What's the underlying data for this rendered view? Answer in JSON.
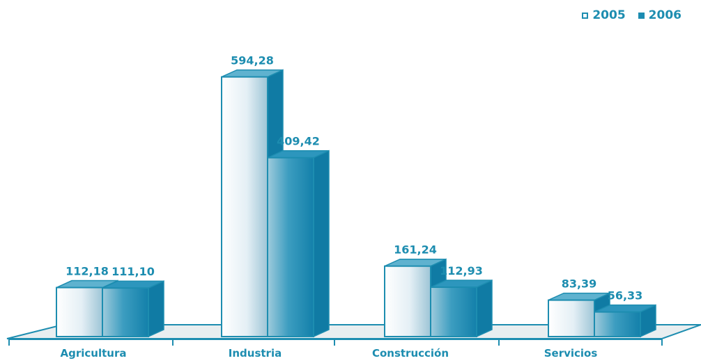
{
  "chart_data": {
    "type": "bar",
    "categories": [
      "Agricultura",
      "Industria",
      "Construcción",
      "Servicios"
    ],
    "series": [
      {
        "name": "2005",
        "values": [
          112.18,
          594.28,
          161.24,
          83.39
        ],
        "labels": [
          "112,18",
          "594,28",
          "161,24",
          "83,39"
        ],
        "color": "#e6f1f6"
      },
      {
        "name": "2006",
        "values": [
          111.1,
          409.42,
          112.93,
          56.33
        ],
        "labels": [
          "111,10",
          "409,42",
          "112,93",
          "56,33"
        ],
        "color": "#1a8cb4"
      }
    ],
    "title": "",
    "xlabel": "",
    "ylabel": "",
    "ylim": [
      0,
      600
    ],
    "grid": false,
    "legend_position": "top-right",
    "bar_style": "3d"
  }
}
